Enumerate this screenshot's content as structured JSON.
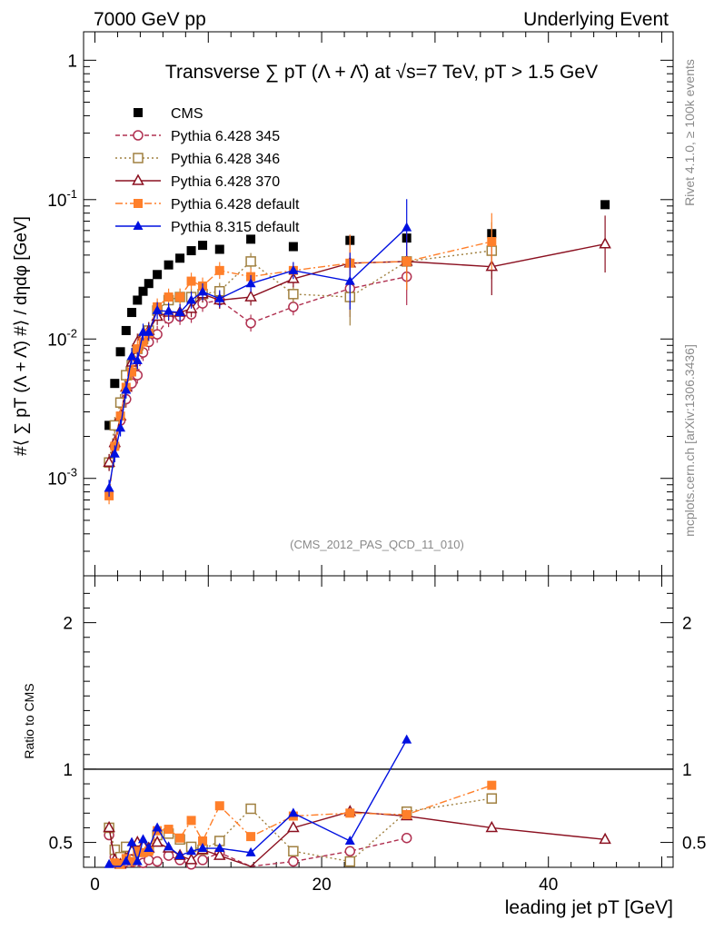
{
  "header": {
    "left": "7000 GeV pp",
    "right": "Underlying Event"
  },
  "side": {
    "rivet": "Rivet 4.1.0, ≥ 100k events",
    "mcplots": "mcplots.cern.ch [arXiv:1306.3436]"
  },
  "chart_data": {
    "type": "line",
    "title": "Transverse ∑ pT (Λ + Λ̄) at √s=7 TeV, pT > 1.5 GeV",
    "watermark": "(CMS_2012_PAS_QCD_11_010)",
    "xlabel": "leading jet pT [GeV]",
    "ylabel": "#⟨ ∑ pT (Λ + Λ̄) #⟩ / dηdφ [GeV]",
    "ratio_ylabel": "Ratio to CMS",
    "xlim": [
      -1,
      51
    ],
    "ylim": [
      0.0002,
      1.6
    ],
    "ratio_ylim": [
      0.33,
      2.32
    ],
    "x_ticks": [
      "0",
      "20",
      "40"
    ],
    "y_ticks": [
      "10^-3",
      "10^-2",
      "10^-1",
      "1"
    ],
    "ratio_ticks": [
      "0.5",
      "1",
      "2"
    ],
    "x": [
      1.25,
      1.75,
      2.25,
      2.75,
      3.25,
      3.75,
      4.25,
      4.75,
      5.5,
      6.5,
      7.5,
      8.5,
      9.5,
      11,
      13.75,
      17.5,
      22.5,
      27.5,
      35,
      45
    ],
    "series": [
      {
        "name": "CMS",
        "color": "#000000",
        "marker": "square-filled",
        "dash": "none",
        "values": [
          0.0024,
          0.0048,
          0.0081,
          0.0115,
          0.0155,
          0.019,
          0.022,
          0.025,
          0.029,
          0.034,
          0.038,
          0.043,
          0.047,
          0.044,
          0.052,
          0.046,
          0.051,
          0.053,
          0.057,
          0.092
        ]
      },
      {
        "name": "Pythia 6.428 345",
        "color": "#b03050",
        "marker": "circle-open",
        "dash": "5,3",
        "values": [
          0.0013,
          0.0017,
          0.0026,
          0.0037,
          0.0048,
          0.0055,
          0.008,
          0.0095,
          0.0108,
          0.014,
          0.0145,
          0.015,
          0.018,
          0.019,
          0.013,
          0.017,
          0.023,
          0.028,
          null,
          null
        ],
        "ratio": [
          0.55,
          0.4,
          0.32,
          0.32,
          0.31,
          0.29,
          0.36,
          0.38,
          0.37,
          0.41,
          0.38,
          0.35,
          0.38,
          0.43,
          0.25,
          0.37,
          0.44,
          0.53,
          null,
          null
        ]
      },
      {
        "name": "Pythia 6.428 346",
        "color": "#a08040",
        "marker": "square-open",
        "dash": "2,3",
        "values": [
          0.0013,
          0.0024,
          0.0035,
          0.0055,
          0.0065,
          0.0085,
          0.01,
          0.0115,
          0.016,
          0.019,
          0.02,
          0.02,
          0.021,
          0.022,
          0.036,
          0.021,
          0.02,
          0.036,
          0.043,
          null
        ],
        "ratio": [
          0.6,
          0.45,
          0.4,
          0.47,
          0.39,
          0.44,
          0.45,
          0.46,
          0.55,
          0.56,
          0.52,
          0.47,
          0.45,
          0.51,
          0.73,
          0.44,
          0.37,
          0.71,
          0.8,
          null
        ]
      },
      {
        "name": "Pythia 6.428 370",
        "color": "#8b1020",
        "marker": "triangle-open",
        "dash": "none",
        "values": [
          0.0013,
          0.0018,
          0.0028,
          0.0045,
          0.0068,
          0.0095,
          0.0105,
          0.0115,
          0.0145,
          0.0155,
          0.0155,
          0.0165,
          0.021,
          0.019,
          0.02,
          0.027,
          0.035,
          0.036,
          0.033,
          0.048
        ],
        "ratio": [
          0.6,
          0.38,
          0.35,
          0.39,
          0.44,
          0.5,
          0.48,
          0.46,
          0.5,
          0.46,
          0.41,
          0.38,
          0.45,
          0.41,
          0.3,
          0.6,
          0.71,
          0.68,
          0.6,
          0.52
        ]
      },
      {
        "name": "Pythia 6.428 default",
        "color": "#ff7f2a",
        "marker": "square-filled",
        "dash": "8,3,2,3",
        "values": [
          0.00075,
          0.0017,
          0.0028,
          0.0045,
          0.0058,
          0.0085,
          0.0095,
          0.011,
          0.017,
          0.02,
          0.02,
          0.026,
          0.024,
          0.031,
          0.028,
          0.031,
          0.035,
          0.036,
          0.05,
          null
        ],
        "ratio": [
          0.31,
          0.36,
          0.35,
          0.39,
          0.37,
          0.44,
          0.43,
          0.44,
          0.58,
          0.59,
          0.53,
          0.65,
          0.51,
          0.75,
          0.54,
          0.68,
          0.7,
          0.69,
          0.89,
          null
        ]
      },
      {
        "name": "Pythia 8.315 default",
        "color": "#0010e0",
        "marker": "triangle-filled",
        "dash": "none",
        "values": [
          0.00085,
          0.0015,
          0.0023,
          0.0043,
          0.0075,
          0.007,
          0.0112,
          0.0112,
          0.016,
          0.0158,
          0.0155,
          0.019,
          0.0218,
          0.0195,
          0.025,
          0.031,
          0.026,
          0.063,
          null,
          null
        ],
        "ratio": [
          0.35,
          0.31,
          0.28,
          0.37,
          0.5,
          0.37,
          0.52,
          0.46,
          0.6,
          0.47,
          0.41,
          0.44,
          0.46,
          0.46,
          0.43,
          0.7,
          0.51,
          1.2,
          null,
          null
        ]
      }
    ]
  }
}
